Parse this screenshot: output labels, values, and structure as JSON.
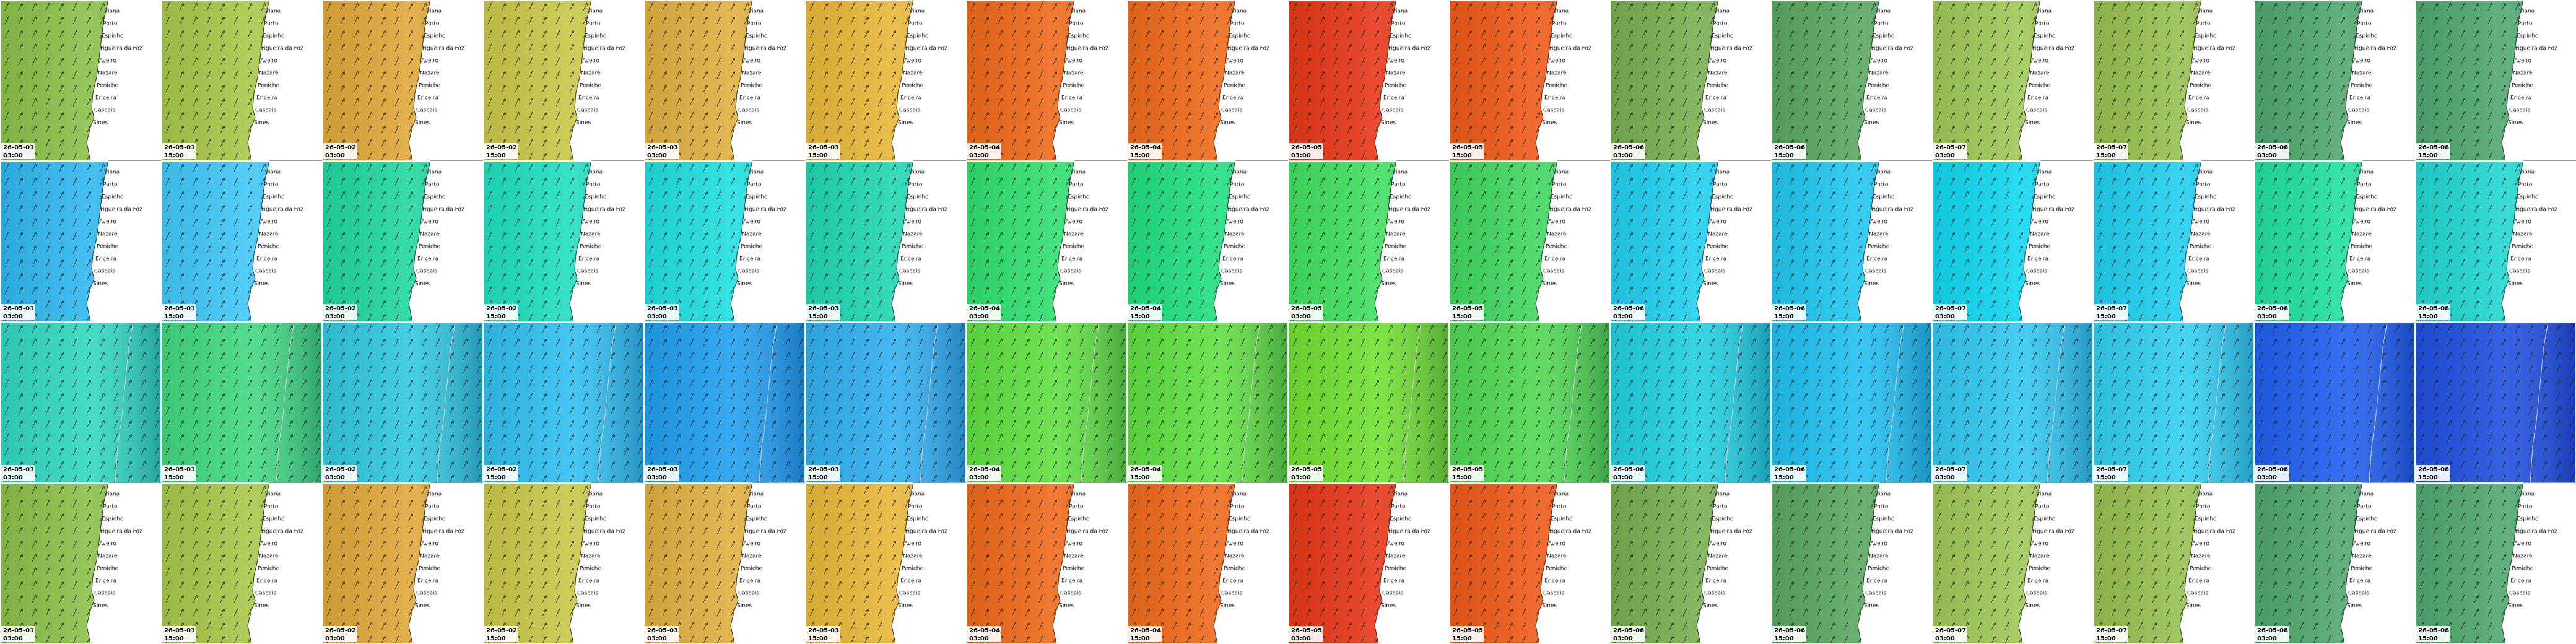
{
  "columns": [
    {
      "date": "26-05-01",
      "time": "03:00"
    },
    {
      "date": "26-05-01",
      "time": "15:00"
    },
    {
      "date": "26-05-02",
      "time": "03:00"
    },
    {
      "date": "26-05-02",
      "time": "15:00"
    },
    {
      "date": "26-05-03",
      "time": "03:00"
    },
    {
      "date": "26-05-03",
      "time": "15:00"
    },
    {
      "date": "26-05-04",
      "time": "03:00"
    },
    {
      "date": "26-05-04",
      "time": "15:00"
    },
    {
      "date": "26-05-05",
      "time": "03:00"
    },
    {
      "date": "26-05-05",
      "time": "15:00"
    },
    {
      "date": "26-05-06",
      "time": "03:00"
    },
    {
      "date": "26-05-06",
      "time": "15:00"
    },
    {
      "date": "26-05-07",
      "time": "03:00"
    },
    {
      "date": "26-05-07",
      "time": "15:00"
    },
    {
      "date": "26-05-08",
      "time": "03:00"
    },
    {
      "date": "26-05-08",
      "time": "15:00"
    }
  ],
  "places": [
    "Viana",
    "Porto",
    "Espinho",
    "Figueira da Foz",
    "Aveiro",
    "Nazaré",
    "Peniche",
    "Ericeira",
    "Cascais",
    "Sines"
  ],
  "rows": [
    {
      "land": true,
      "colors": [
        "#8cc04a",
        "#a8c84a",
        "#e0a83a",
        "#c8c848",
        "#e0b040",
        "#e8b838",
        "#f06a1a",
        "#f06a1a",
        "#e83818",
        "#f05a18",
        "#78b050",
        "#5aa860",
        "#a0c858",
        "#98c050",
        "#50a870",
        "#50a870"
      ]
    },
    {
      "land": true,
      "colors": [
        "#30b8f0",
        "#40c8f8",
        "#20d8a0",
        "#20e0c0",
        "#20e0e0",
        "#20d8b0",
        "#30e070",
        "#20e080",
        "#40e060",
        "#40d860",
        "#20d0f0",
        "#20c8f0",
        "#10d8f0",
        "#20d0f0",
        "#20e0a0",
        "#20d8d0"
      ]
    },
    {
      "land": false,
      "colors": [
        "#30d8c0",
        "#40d880",
        "#30c8e0",
        "#30c0f0",
        "#20a0f0",
        "#30b0f0",
        "#60e040",
        "#60e040",
        "#70e030",
        "#50d850",
        "#20d0e0",
        "#20c0f0",
        "#30c8f0",
        "#30d0f0",
        "#2060f0",
        "#2050e0"
      ]
    },
    {
      "land": true,
      "colors": [
        "#8cc04a",
        "#a8c84a",
        "#e0a83a",
        "#c8c848",
        "#e0b040",
        "#e8b838",
        "#f06a1a",
        "#f06a1a",
        "#e83818",
        "#f05a18",
        "#78b050",
        "#5aa860",
        "#a0c858",
        "#98c050",
        "#50a870",
        "#50a870"
      ]
    }
  ]
}
